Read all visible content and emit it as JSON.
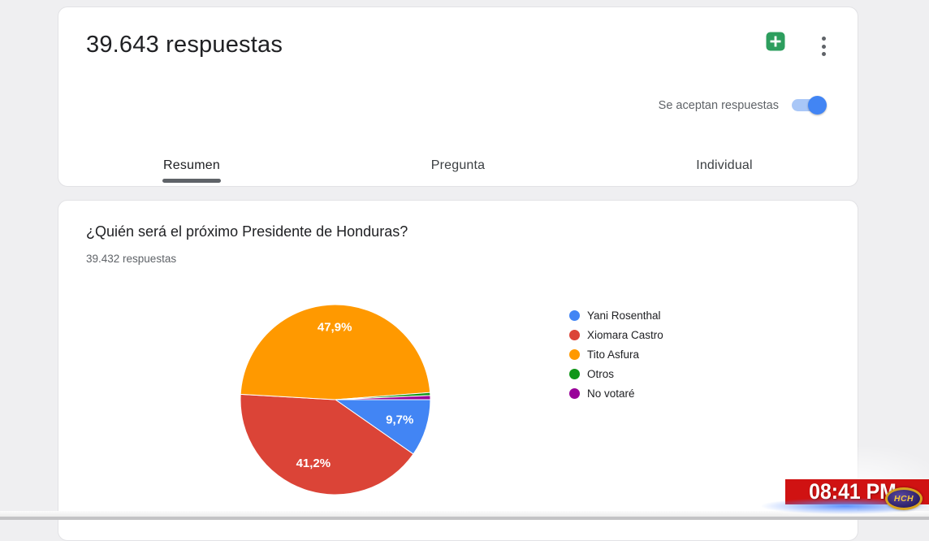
{
  "header": {
    "title": "39.643 respuestas",
    "accepting_responses_label": "Se aceptan respuestas",
    "accepting_responses_on": true,
    "toggle_track_color": "#a9c7f7",
    "toggle_knob_color": "#4285f4",
    "sheets_icon_color": "#2d9e5e"
  },
  "tabs": [
    {
      "label": "Resumen",
      "active": true
    },
    {
      "label": "Pregunta",
      "active": false
    },
    {
      "label": "Individual",
      "active": false
    }
  ],
  "question": {
    "title": "¿Quién será el próximo Presidente de Honduras?",
    "responses_count_label": "39.432 respuestas"
  },
  "chart_data": {
    "type": "pie",
    "title": "¿Quién será el próximo Presidente de Honduras?",
    "labels": [
      "Yani Rosenthal",
      "Xiomara Castro",
      "Tito Asfura",
      "Otros",
      "No votaré"
    ],
    "values": [
      9.7,
      41.2,
      47.9,
      0.5,
      0.7
    ],
    "slice_labels": [
      "9,7%",
      "41,2%",
      "47,9%",
      "",
      ""
    ],
    "colors": [
      "#4285f4",
      "#db4437",
      "#ff9900",
      "#109618",
      "#990099"
    ],
    "start_angle_deg": 0,
    "direction": "clockwise",
    "legend_position": "right"
  },
  "tv_overlay": {
    "clock": "08:41 PM",
    "channel_logo": "HCH",
    "clock_bg_color": "#d01212"
  }
}
